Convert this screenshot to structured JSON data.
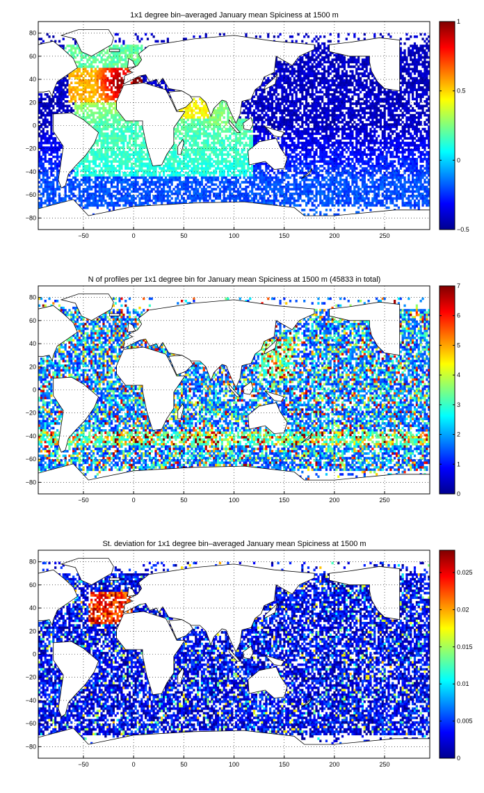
{
  "chart_data": [
    {
      "type": "heatmap",
      "title": "1x1 degree bin–averaged January mean Spiciness at 1500 m",
      "xlim": [
        -95,
        295
      ],
      "ylim": [
        -90,
        90
      ],
      "xticks": [
        -50,
        0,
        50,
        100,
        150,
        200,
        250
      ],
      "yticks": [
        80,
        60,
        40,
        20,
        0,
        -20,
        -40,
        -60,
        -80
      ],
      "grid": true,
      "colorbar": {
        "min": -0.5,
        "max": 1,
        "ticks": [
          1,
          0.5,
          0,
          -0.5
        ],
        "colormap": "jet"
      },
      "field_summary": {
        "north_atlantic_max": 1.0,
        "mediterranean_outflow": 1.0,
        "arabian_sea": 0.5,
        "pacific_typical": -0.4,
        "southern_ocean_typical": -0.15
      }
    },
    {
      "type": "heatmap",
      "title": "N of profiles per 1x1 degree bin for January mean Spiciness at 1500 m (45833 in total)",
      "xlim": [
        -95,
        295
      ],
      "ylim": [
        -90,
        90
      ],
      "xticks": [
        -50,
        0,
        50,
        100,
        150,
        200,
        250
      ],
      "yticks": [
        80,
        60,
        40,
        20,
        0,
        -20,
        -40,
        -60,
        -80
      ],
      "grid": true,
      "colorbar": {
        "min": 0,
        "max": 7,
        "ticks": [
          7,
          6,
          5,
          4,
          3,
          2,
          1,
          0
        ],
        "colormap": "jet"
      },
      "total_profiles": 45833
    },
    {
      "type": "heatmap",
      "title": "St. deviation for 1x1 degree bin–averaged January mean Spiciness at 1500 m",
      "xlim": [
        -95,
        295
      ],
      "ylim": [
        -90,
        90
      ],
      "xticks": [
        -50,
        0,
        50,
        100,
        150,
        200,
        250
      ],
      "yticks": [
        80,
        60,
        40,
        20,
        0,
        -20,
        -40,
        -60,
        -80
      ],
      "grid": true,
      "colorbar": {
        "min": 0,
        "max": 0.028,
        "ticks": [
          0.025,
          0.02,
          0.015,
          0.01,
          0.005,
          0
        ],
        "colormap": "jet"
      }
    }
  ]
}
